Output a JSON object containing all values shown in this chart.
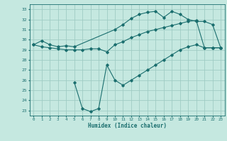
{
  "title": "",
  "xlabel": "Humidex (Indice chaleur)",
  "xlim": [
    -0.5,
    23.5
  ],
  "ylim": [
    22.5,
    33.5
  ],
  "xticks": [
    0,
    1,
    2,
    3,
    4,
    5,
    6,
    7,
    8,
    9,
    10,
    11,
    12,
    13,
    14,
    15,
    16,
    17,
    18,
    19,
    20,
    21,
    22,
    23
  ],
  "yticks": [
    23,
    24,
    25,
    26,
    27,
    28,
    29,
    30,
    31,
    32,
    33
  ],
  "background_color": "#c5e8e0",
  "grid_color": "#9fccc4",
  "line_color": "#1a6e6e",
  "line1_x": [
    0,
    1,
    2,
    3,
    4,
    5,
    10,
    11,
    12,
    13,
    14,
    15,
    16,
    17,
    18,
    19,
    20,
    21,
    22,
    23
  ],
  "line1_y": [
    29.5,
    29.9,
    29.5,
    29.3,
    29.4,
    29.3,
    31.0,
    31.5,
    32.1,
    32.5,
    32.7,
    32.8,
    32.2,
    32.8,
    32.5,
    32.0,
    31.8,
    31.8,
    31.5,
    29.2
  ],
  "line2_x": [
    0,
    1,
    2,
    3,
    4,
    5,
    6,
    7,
    8,
    9,
    10,
    11,
    12,
    13,
    14,
    15,
    16,
    17,
    18,
    19,
    20,
    21,
    22,
    23
  ],
  "line2_y": [
    29.5,
    29.3,
    29.2,
    29.1,
    29.0,
    29.0,
    29.0,
    29.1,
    29.1,
    28.8,
    29.5,
    29.8,
    30.2,
    30.5,
    30.8,
    31.0,
    31.2,
    31.4,
    31.6,
    31.8,
    31.9,
    29.2,
    29.2,
    29.2
  ],
  "line3_x": [
    5,
    6,
    7,
    8,
    9,
    10,
    11,
    12,
    13,
    14,
    15,
    16,
    17,
    18,
    19,
    20,
    21,
    22,
    23
  ],
  "line3_y": [
    25.8,
    23.2,
    22.9,
    23.2,
    27.5,
    26.0,
    25.5,
    26.0,
    26.5,
    27.0,
    27.5,
    28.0,
    28.5,
    29.0,
    29.3,
    29.5,
    29.2,
    29.2,
    29.2
  ],
  "marker": "D",
  "markersize": 1.8,
  "linewidth": 0.8
}
